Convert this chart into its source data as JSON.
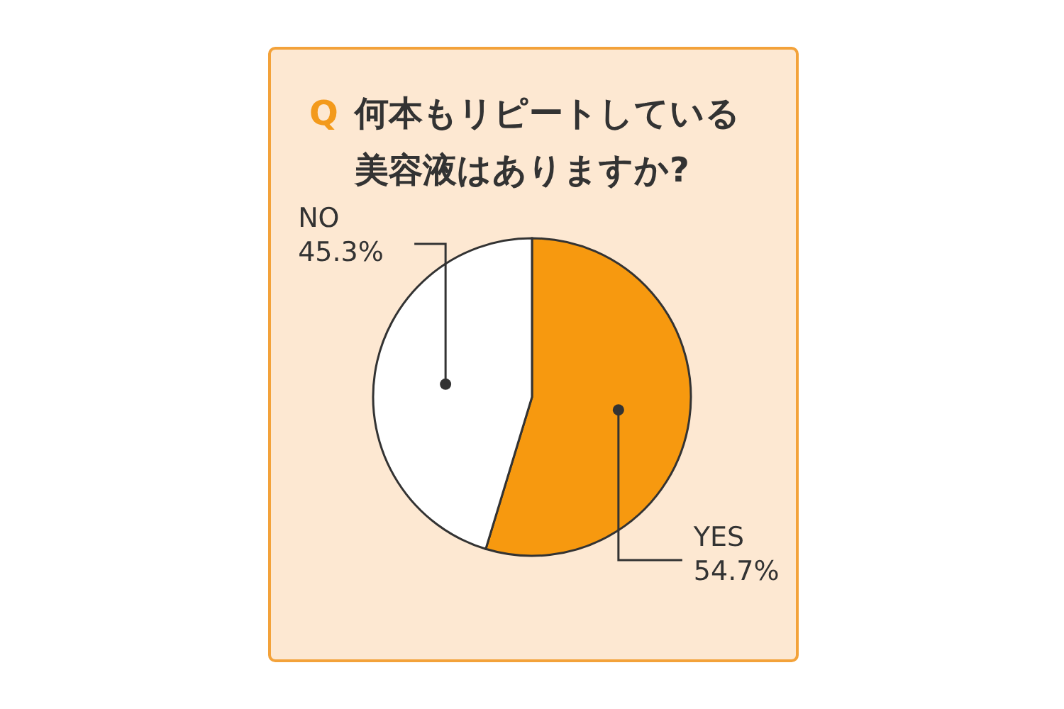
{
  "chart_data": {
    "type": "pie",
    "title": "何本もリピートしている美容液はありますか?",
    "annotations": [
      "Q"
    ],
    "categories": [
      "YES",
      "NO"
    ],
    "values": [
      54.7,
      45.3
    ],
    "colors": [
      "#f7990f",
      "#ffffff"
    ],
    "value_labels": [
      "54.7%",
      "45.3%"
    ]
  }
}
